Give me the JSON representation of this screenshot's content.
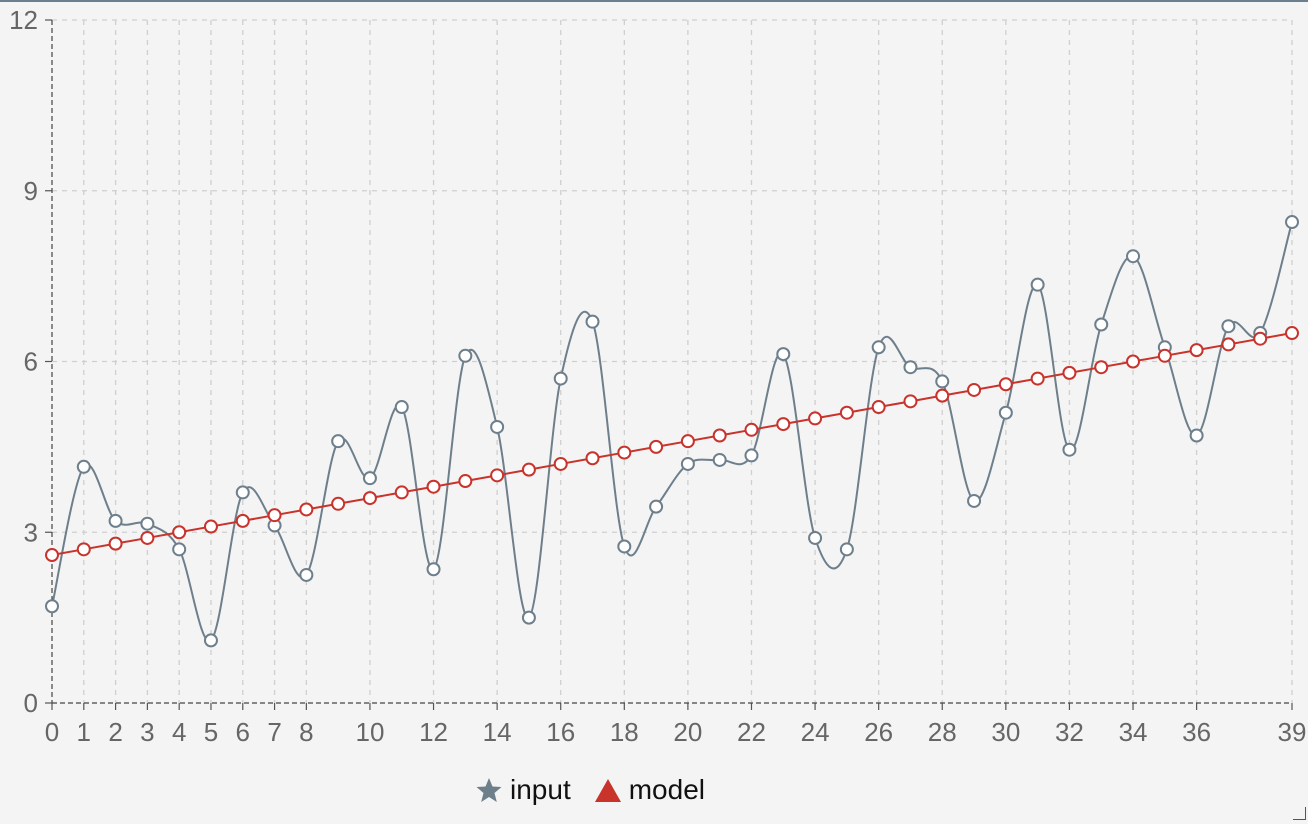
{
  "chart_data": {
    "type": "line",
    "title": "",
    "xlabel": "",
    "ylabel": "",
    "x": [
      0,
      1,
      2,
      3,
      4,
      5,
      6,
      7,
      8,
      9,
      10,
      11,
      12,
      13,
      14,
      15,
      16,
      17,
      18,
      19,
      20,
      21,
      22,
      23,
      24,
      25,
      26,
      27,
      28,
      29,
      30,
      31,
      32,
      33,
      34,
      35,
      36,
      37,
      38,
      39
    ],
    "x_tick_labels": [
      "0",
      "1",
      "2",
      "3",
      "4",
      "5",
      "6",
      "7",
      "8",
      "10",
      "12",
      "14",
      "16",
      "18",
      "20",
      "22",
      "24",
      "26",
      "28",
      "30",
      "32",
      "34",
      "36",
      "39"
    ],
    "xlim": [
      0,
      39
    ],
    "ylim": [
      0,
      12
    ],
    "y_ticks": [
      0,
      3,
      6,
      9,
      12
    ],
    "y_tick_labels": [
      "0",
      "3",
      "6",
      "9",
      "12"
    ],
    "grid": true,
    "legend_position": "bottom-center",
    "series": [
      {
        "name": "input",
        "color": "#6e7f8c",
        "legend_icon": "star-icon",
        "smooth": true,
        "values": [
          1.7,
          4.15,
          3.2,
          3.15,
          2.7,
          1.1,
          3.7,
          3.12,
          2.25,
          4.6,
          3.95,
          5.2,
          2.35,
          6.1,
          4.85,
          1.5,
          5.7,
          6.7,
          2.75,
          3.45,
          4.2,
          4.27,
          4.35,
          6.13,
          2.9,
          2.7,
          6.25,
          5.9,
          5.65,
          3.55,
          5.1,
          7.35,
          4.45,
          6.65,
          7.85,
          6.25,
          4.7,
          6.62,
          6.5,
          8.45
        ]
      },
      {
        "name": "model",
        "color": "#c8332c",
        "legend_icon": "triangle-icon",
        "smooth": false,
        "values": [
          2.6,
          2.7,
          2.8,
          2.9,
          3.0,
          3.1,
          3.2,
          3.3,
          3.4,
          3.5,
          3.6,
          3.7,
          3.8,
          3.9,
          4.0,
          4.1,
          4.2,
          4.3,
          4.4,
          4.5,
          4.6,
          4.7,
          4.8,
          4.9,
          5.0,
          5.1,
          5.2,
          5.3,
          5.4,
          5.5,
          5.6,
          5.7,
          5.8,
          5.9,
          6.0,
          6.1,
          6.2,
          6.3,
          6.4,
          6.5
        ]
      }
    ]
  }
}
